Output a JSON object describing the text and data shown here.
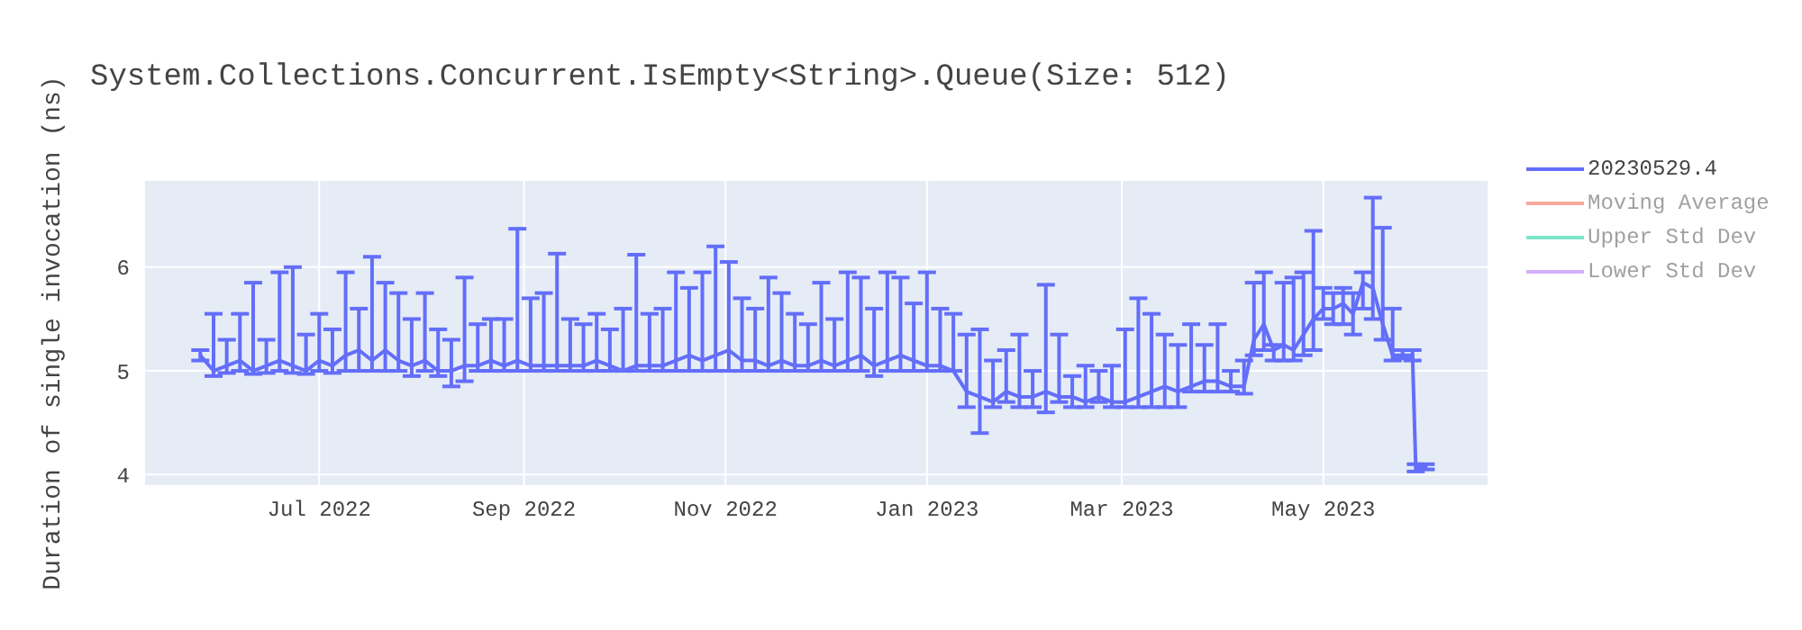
{
  "chart_data": {
    "type": "line",
    "title": "System.Collections.Concurrent.IsEmpty<String>.Queue(Size: 512)",
    "ylabel": "Duration of single invocation (ns)",
    "x": [
      "2022-05-26",
      "2022-05-30",
      "2022-06-03",
      "2022-06-07",
      "2022-06-11",
      "2022-06-15",
      "2022-06-19",
      "2022-06-23",
      "2022-06-27",
      "2022-07-01",
      "2022-07-05",
      "2022-07-09",
      "2022-07-13",
      "2022-07-17",
      "2022-07-21",
      "2022-07-25",
      "2022-07-29",
      "2022-08-02",
      "2022-08-06",
      "2022-08-10",
      "2022-08-14",
      "2022-08-18",
      "2022-08-22",
      "2022-08-26",
      "2022-08-30",
      "2022-09-03",
      "2022-09-07",
      "2022-09-11",
      "2022-09-15",
      "2022-09-19",
      "2022-09-23",
      "2022-09-27",
      "2022-10-01",
      "2022-10-05",
      "2022-10-09",
      "2022-10-13",
      "2022-10-17",
      "2022-10-21",
      "2022-10-25",
      "2022-10-29",
      "2022-11-02",
      "2022-11-06",
      "2022-11-10",
      "2022-11-14",
      "2022-11-18",
      "2022-11-22",
      "2022-11-26",
      "2022-11-30",
      "2022-12-04",
      "2022-12-08",
      "2022-12-12",
      "2022-12-16",
      "2022-12-20",
      "2022-12-24",
      "2022-12-28",
      "2023-01-01",
      "2023-01-05",
      "2023-01-09",
      "2023-01-13",
      "2023-01-17",
      "2023-01-21",
      "2023-01-25",
      "2023-01-29",
      "2023-02-02",
      "2023-02-06",
      "2023-02-10",
      "2023-02-14",
      "2023-02-18",
      "2023-02-22",
      "2023-02-26",
      "2023-03-02",
      "2023-03-06",
      "2023-03-10",
      "2023-03-14",
      "2023-03-18",
      "2023-03-22",
      "2023-03-26",
      "2023-03-30",
      "2023-04-03",
      "2023-04-07",
      "2023-04-10",
      "2023-04-13",
      "2023-04-16",
      "2023-04-19",
      "2023-04-22",
      "2023-04-25",
      "2023-04-28",
      "2023-05-01",
      "2023-05-04",
      "2023-05-07",
      "2023-05-10",
      "2023-05-13",
      "2023-05-16",
      "2023-05-19",
      "2023-05-22",
      "2023-05-25",
      "2023-05-28",
      "2023-05-29",
      "2023-06-01"
    ],
    "series": [
      {
        "name": "20230529.4",
        "color": "#636efa",
        "values": [
          5.15,
          5.0,
          5.05,
          5.1,
          5.0,
          5.05,
          5.1,
          5.05,
          5.0,
          5.1,
          5.05,
          5.15,
          5.2,
          5.1,
          5.2,
          5.1,
          5.05,
          5.1,
          5.0,
          5.0,
          5.05,
          5.05,
          5.1,
          5.05,
          5.1,
          5.05,
          5.05,
          5.05,
          5.05,
          5.05,
          5.1,
          5.05,
          5.0,
          5.05,
          5.05,
          5.05,
          5.1,
          5.15,
          5.1,
          5.15,
          5.2,
          5.1,
          5.1,
          5.05,
          5.1,
          5.05,
          5.05,
          5.1,
          5.05,
          5.1,
          5.15,
          5.05,
          5.1,
          5.15,
          5.1,
          5.05,
          5.05,
          5.0,
          4.8,
          4.75,
          4.7,
          4.8,
          4.75,
          4.75,
          4.8,
          4.75,
          4.75,
          4.7,
          4.75,
          4.7,
          4.7,
          4.75,
          4.8,
          4.85,
          4.8,
          4.85,
          4.9,
          4.9,
          4.85,
          4.85,
          5.3,
          5.45,
          5.2,
          5.25,
          5.2,
          5.35,
          5.5,
          5.6,
          5.6,
          5.65,
          5.55,
          5.85,
          5.8,
          5.45,
          5.15,
          5.15,
          5.15,
          4.07,
          4.08
        ],
        "errors": [
          [
            5.1,
            5.2
          ],
          [
            4.95,
            5.55
          ],
          [
            4.98,
            5.3
          ],
          [
            5.0,
            5.55
          ],
          [
            4.97,
            5.85
          ],
          [
            4.98,
            5.3
          ],
          [
            5.0,
            5.95
          ],
          [
            4.98,
            6.0
          ],
          [
            4.97,
            5.35
          ],
          [
            5.0,
            5.55
          ],
          [
            4.98,
            5.4
          ],
          [
            5.0,
            5.95
          ],
          [
            5.0,
            5.6
          ],
          [
            5.0,
            6.1
          ],
          [
            5.0,
            5.85
          ],
          [
            5.0,
            5.75
          ],
          [
            4.95,
            5.5
          ],
          [
            5.0,
            5.75
          ],
          [
            4.95,
            5.4
          ],
          [
            4.85,
            5.3
          ],
          [
            4.9,
            5.9
          ],
          [
            5.0,
            5.45
          ],
          [
            5.0,
            5.5
          ],
          [
            5.0,
            5.5
          ],
          [
            5.0,
            6.37
          ],
          [
            5.0,
            5.7
          ],
          [
            5.0,
            5.75
          ],
          [
            5.0,
            6.13
          ],
          [
            5.0,
            5.5
          ],
          [
            5.0,
            5.45
          ],
          [
            5.0,
            5.55
          ],
          [
            5.0,
            5.4
          ],
          [
            5.0,
            5.6
          ],
          [
            5.0,
            6.12
          ],
          [
            5.0,
            5.55
          ],
          [
            5.0,
            5.6
          ],
          [
            5.0,
            5.95
          ],
          [
            5.0,
            5.8
          ],
          [
            5.0,
            5.95
          ],
          [
            5.0,
            6.2
          ],
          [
            5.0,
            6.05
          ],
          [
            5.0,
            5.7
          ],
          [
            5.0,
            5.6
          ],
          [
            5.0,
            5.9
          ],
          [
            5.0,
            5.75
          ],
          [
            5.0,
            5.55
          ],
          [
            5.0,
            5.45
          ],
          [
            5.0,
            5.85
          ],
          [
            5.0,
            5.5
          ],
          [
            5.0,
            5.95
          ],
          [
            5.0,
            5.9
          ],
          [
            4.95,
            5.6
          ],
          [
            5.0,
            5.95
          ],
          [
            5.0,
            5.9
          ],
          [
            5.0,
            5.65
          ],
          [
            5.0,
            5.95
          ],
          [
            5.0,
            5.6
          ],
          [
            5.0,
            5.55
          ],
          [
            4.65,
            5.35
          ],
          [
            4.4,
            5.4
          ],
          [
            4.65,
            5.1
          ],
          [
            4.7,
            5.2
          ],
          [
            4.65,
            5.35
          ],
          [
            4.65,
            5.0
          ],
          [
            4.6,
            5.83
          ],
          [
            4.7,
            5.35
          ],
          [
            4.65,
            4.95
          ],
          [
            4.65,
            5.05
          ],
          [
            4.7,
            5.0
          ],
          [
            4.65,
            5.05
          ],
          [
            4.65,
            5.4
          ],
          [
            4.65,
            5.7
          ],
          [
            4.65,
            5.55
          ],
          [
            4.65,
            5.35
          ],
          [
            4.65,
            5.25
          ],
          [
            4.8,
            5.45
          ],
          [
            4.8,
            5.25
          ],
          [
            4.8,
            5.45
          ],
          [
            4.8,
            5.0
          ],
          [
            4.78,
            5.1
          ],
          [
            5.15,
            5.85
          ],
          [
            5.2,
            5.95
          ],
          [
            5.1,
            5.25
          ],
          [
            5.1,
            5.85
          ],
          [
            5.1,
            5.9
          ],
          [
            5.15,
            5.95
          ],
          [
            5.2,
            6.35
          ],
          [
            5.5,
            5.8
          ],
          [
            5.45,
            5.75
          ],
          [
            5.45,
            5.8
          ],
          [
            5.35,
            5.75
          ],
          [
            5.6,
            5.95
          ],
          [
            5.5,
            6.67
          ],
          [
            5.3,
            6.38
          ],
          [
            5.1,
            5.6
          ],
          [
            5.12,
            5.2
          ],
          [
            5.1,
            5.2
          ],
          [
            4.03,
            4.1
          ],
          [
            4.05,
            4.1
          ]
        ]
      },
      {
        "name": "Moving Average",
        "color": "#ef553b",
        "values": [
          null,
          null,
          null,
          null,
          null,
          null,
          null,
          null,
          null,
          null,
          null,
          null,
          null,
          null,
          null,
          null,
          null,
          null,
          null,
          null,
          null,
          null,
          null,
          null,
          null,
          null,
          null,
          null,
          null,
          null,
          null,
          null,
          null,
          null,
          null,
          null,
          null,
          null,
          null,
          null,
          null,
          null,
          null,
          null,
          null,
          null,
          null,
          null,
          null,
          null,
          null,
          null,
          null,
          null,
          null,
          null,
          null,
          null,
          null,
          null,
          null,
          null,
          null,
          null,
          null,
          null,
          null,
          null,
          null,
          null,
          null,
          null,
          null,
          null,
          null,
          null,
          null,
          null,
          null,
          null,
          null,
          null,
          null,
          null,
          null,
          null,
          null,
          null,
          null,
          null,
          null,
          null,
          null,
          null,
          null,
          null,
          null,
          null,
          null
        ]
      },
      {
        "name": "Upper Std Dev",
        "color": "#00cc96",
        "values": [
          null,
          null,
          null,
          null,
          null,
          null,
          null,
          null,
          null,
          null,
          null,
          null,
          null,
          null,
          null,
          null,
          null,
          null,
          null,
          null,
          null,
          null,
          null,
          null,
          null,
          null,
          null,
          null,
          null,
          null,
          null,
          null,
          null,
          null,
          null,
          null,
          null,
          null,
          null,
          null,
          null,
          null,
          null,
          null,
          null,
          null,
          null,
          null,
          null,
          null,
          null,
          null,
          null,
          null,
          null,
          null,
          null,
          null,
          null,
          null,
          null,
          null,
          null,
          null,
          null,
          null,
          null,
          null,
          null,
          null,
          null,
          null,
          null,
          null,
          null,
          null,
          null,
          null,
          null,
          null,
          null,
          null,
          null,
          null,
          null,
          null,
          null,
          null,
          null,
          null,
          null,
          null,
          null,
          null,
          null,
          null,
          null,
          null,
          null
        ]
      },
      {
        "name": "Lower Std Dev",
        "color": "#ab63fa",
        "values": [
          null,
          null,
          null,
          null,
          null,
          null,
          null,
          null,
          null,
          null,
          null,
          null,
          null,
          null,
          null,
          null,
          null,
          null,
          null,
          null,
          null,
          null,
          null,
          null,
          null,
          null,
          null,
          null,
          null,
          null,
          null,
          null,
          null,
          null,
          null,
          null,
          null,
          null,
          null,
          null,
          null,
          null,
          null,
          null,
          null,
          null,
          null,
          null,
          null,
          null,
          null,
          null,
          null,
          null,
          null,
          null,
          null,
          null,
          null,
          null,
          null,
          null,
          null,
          null,
          null,
          null,
          null,
          null,
          null,
          null,
          null,
          null,
          null,
          null,
          null,
          null,
          null,
          null,
          null,
          null,
          null,
          null,
          null,
          null,
          null,
          null,
          null,
          null,
          null,
          null,
          null,
          null,
          null,
          null,
          null,
          null,
          null,
          null,
          null
        ]
      }
    ],
    "xlim": [
      "2022-05-09",
      "2023-06-20"
    ],
    "xticks": [
      {
        "value": "2022-07-01",
        "label": "Jul 2022"
      },
      {
        "value": "2022-09-01",
        "label": "Sep 2022"
      },
      {
        "value": "2022-11-01",
        "label": "Nov 2022"
      },
      {
        "value": "2023-01-01",
        "label": "Jan 2023"
      },
      {
        "value": "2023-03-01",
        "label": "Mar 2023"
      },
      {
        "value": "2023-05-01",
        "label": "May 2023"
      }
    ],
    "ylim": [
      3.89,
      6.84
    ],
    "yticks": [
      4,
      5,
      6
    ],
    "grid": true,
    "legend": "right",
    "marker": "none",
    "line_style": "solid"
  }
}
